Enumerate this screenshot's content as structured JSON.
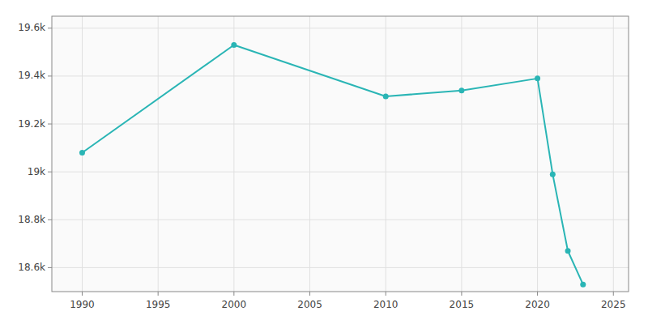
{
  "chart_data": {
    "type": "line",
    "x": [
      1990,
      2000,
      2010,
      2015,
      2020,
      2021,
      2022,
      2023
    ],
    "values": [
      19080,
      19530,
      19315,
      19340,
      19390,
      18990,
      18670,
      18530
    ],
    "color": "#2ab5b5",
    "marker": "circle",
    "xlim": [
      1988,
      2026
    ],
    "ylim": [
      18500,
      19650
    ],
    "xticks": [
      1990,
      1995,
      2000,
      2005,
      2010,
      2015,
      2020,
      2025
    ],
    "yticks": [
      {
        "value": 18600,
        "label": "18.6k"
      },
      {
        "value": 18800,
        "label": "18.8k"
      },
      {
        "value": 19000,
        "label": "19k"
      },
      {
        "value": 19200,
        "label": "19.2k"
      },
      {
        "value": 19400,
        "label": "19.4k"
      },
      {
        "value": 19600,
        "label": "19.6k"
      }
    ],
    "grid": true
  }
}
